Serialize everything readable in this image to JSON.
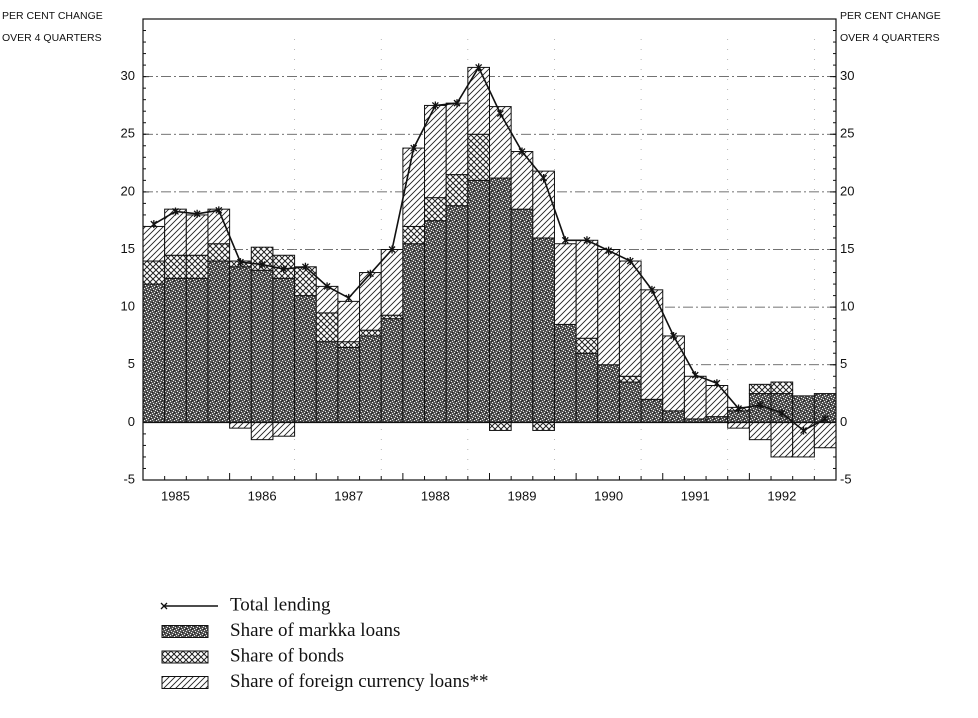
{
  "chart_data": {
    "type": "bar",
    "stacked": true,
    "y_label": [
      "PER CENT CHANGE",
      "OVER 4 QUARTERS"
    ],
    "y2_label": [
      "PER CENT CHANGE",
      "OVER 4 QUARTERS"
    ],
    "categories": [
      "1985",
      null,
      null,
      null,
      "1986",
      null,
      null,
      null,
      "1987",
      null,
      null,
      null,
      "1988",
      null,
      null,
      null,
      "1989",
      null,
      null,
      null,
      "1990",
      null,
      null,
      null,
      "1991",
      null,
      null,
      null,
      "1992",
      null,
      null,
      null
    ],
    "series": [
      {
        "name": "Total lending",
        "type": "line",
        "color": "#111",
        "values": [
          17.2,
          18.3,
          18.1,
          18.4,
          13.9,
          13.7,
          13.3,
          13.5,
          11.8,
          10.8,
          12.9,
          15,
          23.8,
          27.5,
          27.7,
          30.8,
          26.8,
          23.5,
          21.2,
          15.8,
          15.8,
          14.9,
          14,
          11.5,
          7.5,
          4.1,
          3.4,
          1.2,
          1.5,
          0.8,
          -0.7,
          0.3
        ]
      },
      {
        "name": "Share of markka loans",
        "pattern": "stipple",
        "color": "#222",
        "values": [
          12,
          12.5,
          12.5,
          14,
          13.5,
          13.2,
          12.5,
          11,
          7,
          6.5,
          7.5,
          9,
          15.5,
          17.5,
          18.8,
          21,
          21.2,
          18.5,
          16,
          8.5,
          6,
          5,
          3.5,
          2,
          1,
          0.3,
          0.5,
          1,
          2.5,
          2.5,
          2.3,
          2.5
        ]
      },
      {
        "name": "Share of bonds",
        "pattern": "crosshatch",
        "color": "#222",
        "values": [
          2,
          2,
          2,
          1.5,
          0.5,
          2,
          2,
          2.5,
          2.5,
          0.5,
          0.5,
          0.3,
          1.5,
          2,
          2.7,
          4,
          -0.7,
          0,
          -0.7,
          0,
          1.3,
          0,
          0.5,
          0,
          0,
          0,
          0,
          0.3,
          0.8,
          1,
          0,
          0
        ]
      },
      {
        "name": "Share of foreign currency loans**",
        "pattern": "diagonal",
        "color": "#222",
        "values": [
          3,
          4,
          3.5,
          3,
          -0.5,
          -1.5,
          -1.2,
          0,
          2.3,
          3.5,
          5,
          5.7,
          6.8,
          8,
          6.2,
          5.8,
          6.2,
          5,
          5.8,
          7,
          8.5,
          10,
          10,
          9.5,
          6.5,
          3.7,
          2.7,
          -0.5,
          -1.5,
          -3,
          -3,
          -2.2
        ]
      }
    ],
    "ylim": [
      -5,
      35
    ],
    "yticks": [
      -5,
      0,
      5,
      10,
      15,
      20,
      25,
      30
    ],
    "y2lim": [
      -5,
      35
    ],
    "y2ticks": [
      -5,
      0,
      5,
      10,
      15,
      20,
      25,
      30
    ],
    "grid": true
  }
}
